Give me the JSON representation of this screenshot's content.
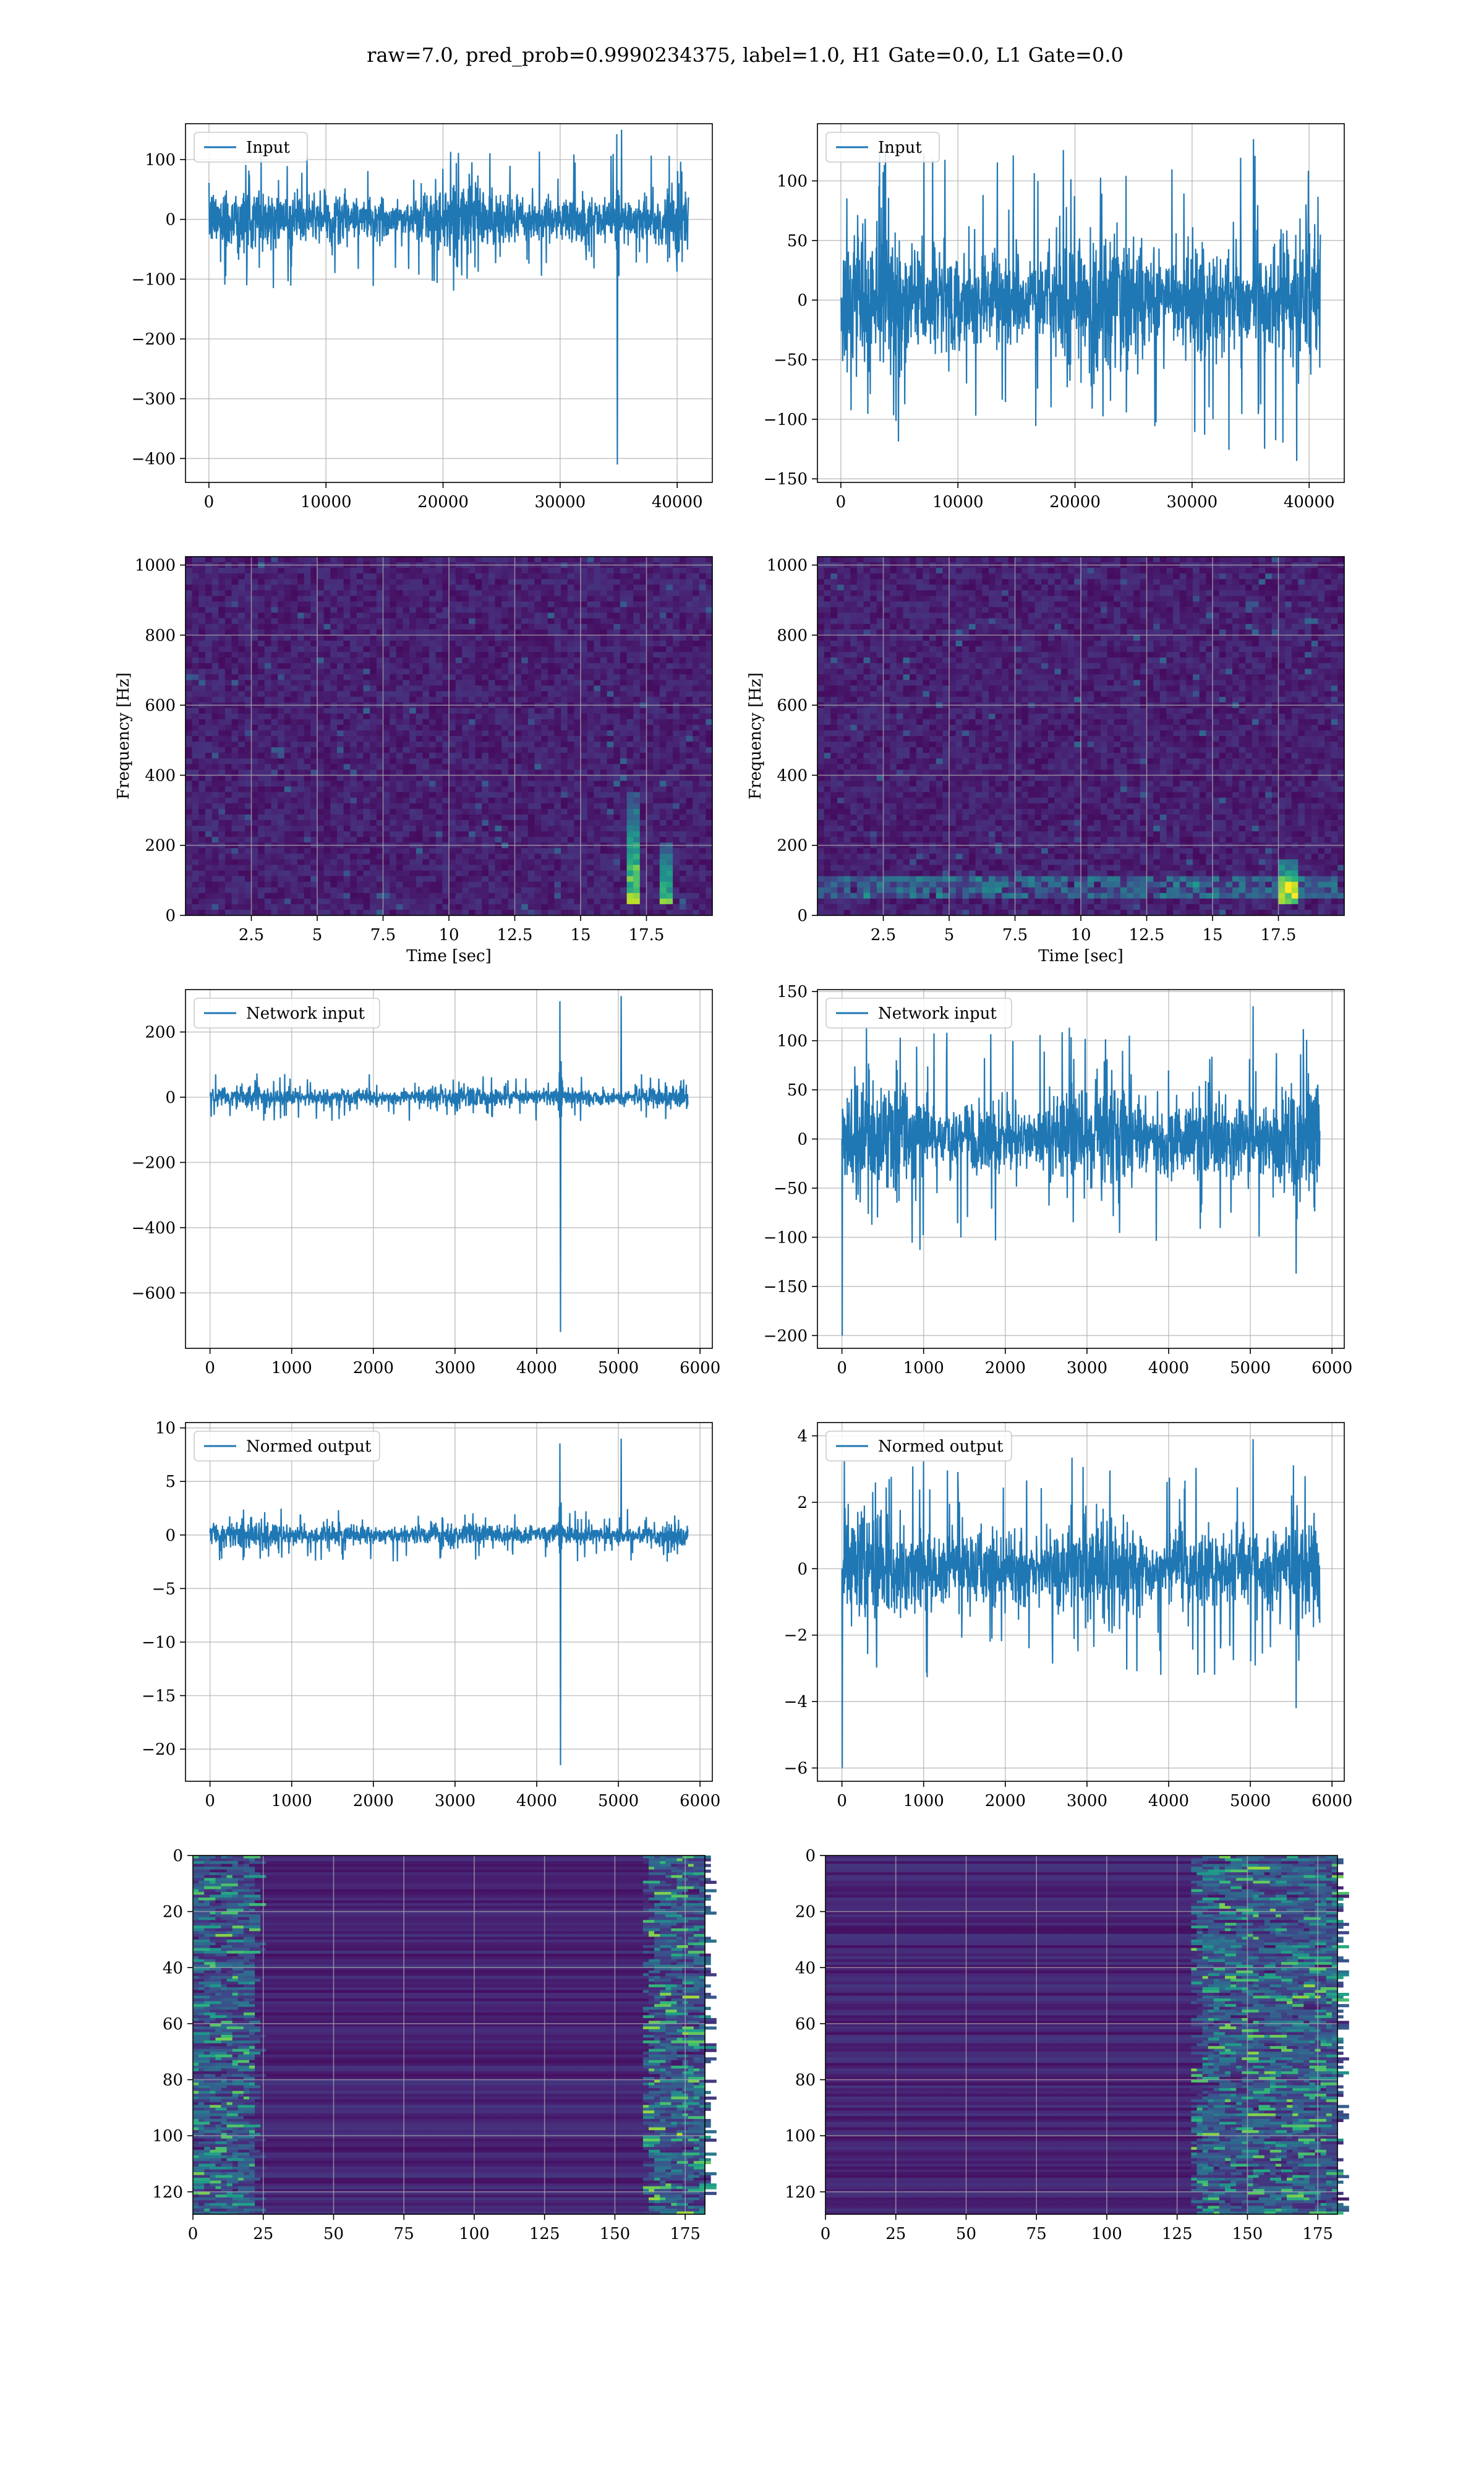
{
  "figure": {
    "title": "raw=7.0, pred_prob=0.9990234375, label=1.0, H1 Gate=0.0, L1 Gate=0.0",
    "colors": {
      "series": "#1f77b4",
      "grid": "#b0b0b0",
      "frame": "#000000"
    }
  },
  "chart_data": [
    {
      "type": "line",
      "legend": "Input",
      "legend_position": "upper-left",
      "grid": true,
      "xlim": [
        -2000,
        43000
      ],
      "ylim": [
        -440,
        160
      ],
      "xticks": [
        0,
        10000,
        20000,
        30000,
        40000
      ],
      "yticks": [
        -400,
        -300,
        -200,
        -100,
        0,
        100
      ],
      "x_range": [
        0,
        40960
      ],
      "baseline_amplitude": 55,
      "peak_max": 150,
      "glitch": {
        "x": 34900,
        "min": -410
      }
    },
    {
      "type": "line",
      "legend": "Input",
      "legend_position": "upper-left",
      "grid": true,
      "xlim": [
        -2000,
        43000
      ],
      "ylim": [
        -153,
        148
      ],
      "xticks": [
        0,
        10000,
        20000,
        30000,
        40000
      ],
      "yticks": [
        -150,
        -100,
        -50,
        0,
        50,
        100
      ],
      "x_range": [
        0,
        40960
      ],
      "baseline_amplitude": 60,
      "peak_max": 135,
      "peak_min": -135
    },
    {
      "type": "heatmap",
      "colormap": "viridis",
      "grid": true,
      "xlabel": "Time [sec]",
      "ylabel": "Frequency [Hz]",
      "xlim": [
        0,
        20
      ],
      "ylim": [
        0,
        1024
      ],
      "xticks": [
        2.5,
        5.0,
        7.5,
        10.0,
        12.5,
        15.0,
        17.5
      ],
      "yticks": [
        0,
        200,
        400,
        600,
        800,
        1000
      ],
      "hotspots": [
        {
          "t": 17.0,
          "f": 60,
          "f_top": 350,
          "strength": 0.9
        },
        {
          "t": 18.2,
          "f": 60,
          "f_top": 200,
          "strength": 0.75
        }
      ],
      "band": null
    },
    {
      "type": "heatmap",
      "colormap": "viridis",
      "grid": true,
      "xlabel": "Time [sec]",
      "ylabel": "Frequency [Hz]",
      "xlim": [
        0,
        20
      ],
      "ylim": [
        0,
        1024
      ],
      "xticks": [
        2.5,
        5.0,
        7.5,
        10.0,
        12.5,
        15.0,
        17.5
      ],
      "yticks": [
        0,
        200,
        400,
        600,
        800,
        1000
      ],
      "hotspots": [
        {
          "t": 17.9,
          "f": 60,
          "f_top": 160,
          "strength": 0.85
        }
      ],
      "band": {
        "f": 80,
        "width": 40,
        "strength": 0.35
      }
    },
    {
      "type": "line",
      "legend": "Network input",
      "legend_position": "upper-left",
      "grid": true,
      "xlim": [
        -300,
        6150
      ],
      "ylim": [
        -770,
        330
      ],
      "xticks": [
        0,
        1000,
        2000,
        3000,
        4000,
        5000,
        6000
      ],
      "yticks": [
        -600,
        -400,
        -200,
        0,
        200
      ],
      "x_range": [
        0,
        5850
      ],
      "baseline_amplitude": 35,
      "peak_max": 310,
      "glitch": {
        "x": 4290,
        "min": -720
      }
    },
    {
      "type": "line",
      "legend": "Network input",
      "legend_position": "upper-left",
      "grid": true,
      "xlim": [
        -300,
        6150
      ],
      "ylim": [
        -213,
        152
      ],
      "xticks": [
        0,
        1000,
        2000,
        3000,
        4000,
        5000,
        6000
      ],
      "yticks": [
        -200,
        -150,
        -100,
        -50,
        0,
        50,
        100,
        150
      ],
      "x_range": [
        0,
        5850
      ],
      "baseline_amplitude": 55,
      "peak_max": 135,
      "peak_min": -137,
      "start_spike": -200
    },
    {
      "type": "line",
      "legend": "Normed output",
      "legend_position": "upper-left",
      "grid": true,
      "xlim": [
        -300,
        6150
      ],
      "ylim": [
        -23,
        10.5
      ],
      "xticks": [
        0,
        1000,
        2000,
        3000,
        4000,
        5000,
        6000
      ],
      "yticks": [
        -20,
        -15,
        -10,
        -5,
        0,
        5,
        10
      ],
      "x_range": [
        0,
        5850
      ],
      "baseline_amplitude": 1.2,
      "peak_max": 9,
      "glitch": {
        "x": 4290,
        "min": -21.5
      }
    },
    {
      "type": "line",
      "legend": "Normed output",
      "legend_position": "upper-left",
      "grid": true,
      "xlim": [
        -300,
        6150
      ],
      "ylim": [
        -6.4,
        4.4
      ],
      "xticks": [
        0,
        1000,
        2000,
        3000,
        4000,
        5000,
        6000
      ],
      "yticks": [
        -6,
        -4,
        -2,
        0,
        2,
        4
      ],
      "x_range": [
        0,
        5850
      ],
      "baseline_amplitude": 1.6,
      "peak_max": 3.9,
      "peak_min": -4.2,
      "start_spike": -6
    },
    {
      "type": "heatmap",
      "colormap": "viridis",
      "grid": true,
      "image_origin": "upper",
      "xlim": [
        0,
        182
      ],
      "ylim": [
        128,
        0
      ],
      "xticks": [
        0,
        25,
        50,
        75,
        100,
        125,
        150,
        175
      ],
      "yticks": [
        0,
        20,
        40,
        60,
        80,
        100,
        120
      ],
      "active_regions": [
        {
          "x0": 0,
          "x1": 22,
          "strength": 0.7
        },
        {
          "x0": 160,
          "x1": 182,
          "strength": 0.75
        }
      ]
    },
    {
      "type": "heatmap",
      "colormap": "viridis",
      "grid": true,
      "image_origin": "upper",
      "xlim": [
        0,
        182
      ],
      "ylim": [
        128,
        0
      ],
      "xticks": [
        0,
        25,
        50,
        75,
        100,
        125,
        150,
        175
      ],
      "yticks": [
        0,
        20,
        40,
        60,
        80,
        100,
        120
      ],
      "active_regions": [
        {
          "x0": 130,
          "x1": 182,
          "strength": 0.7
        }
      ]
    }
  ]
}
